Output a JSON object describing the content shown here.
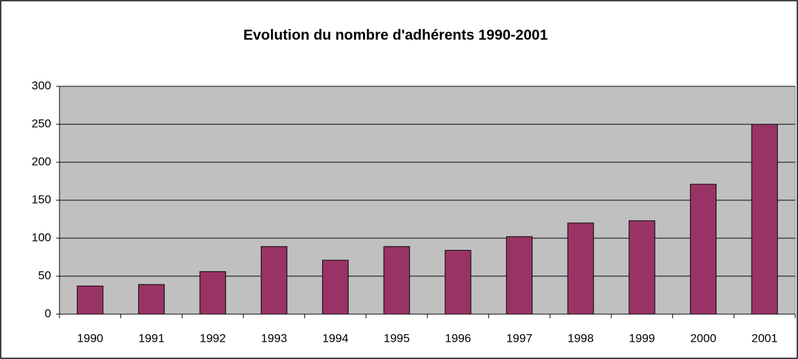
{
  "chart_data": {
    "type": "bar",
    "title": "Evolution du nombre d'adhérents 1990-2001",
    "categories": [
      "1990",
      "1991",
      "1992",
      "1993",
      "1994",
      "1995",
      "1996",
      "1997",
      "1998",
      "1999",
      "2000",
      "2001"
    ],
    "values": [
      37,
      39,
      56,
      89,
      71,
      89,
      84,
      102,
      120,
      123,
      171,
      250
    ],
    "color": "#993366",
    "ylim": [
      0,
      300
    ],
    "yticks": [
      0,
      50,
      100,
      150,
      200,
      250,
      300
    ],
    "grid": true
  }
}
